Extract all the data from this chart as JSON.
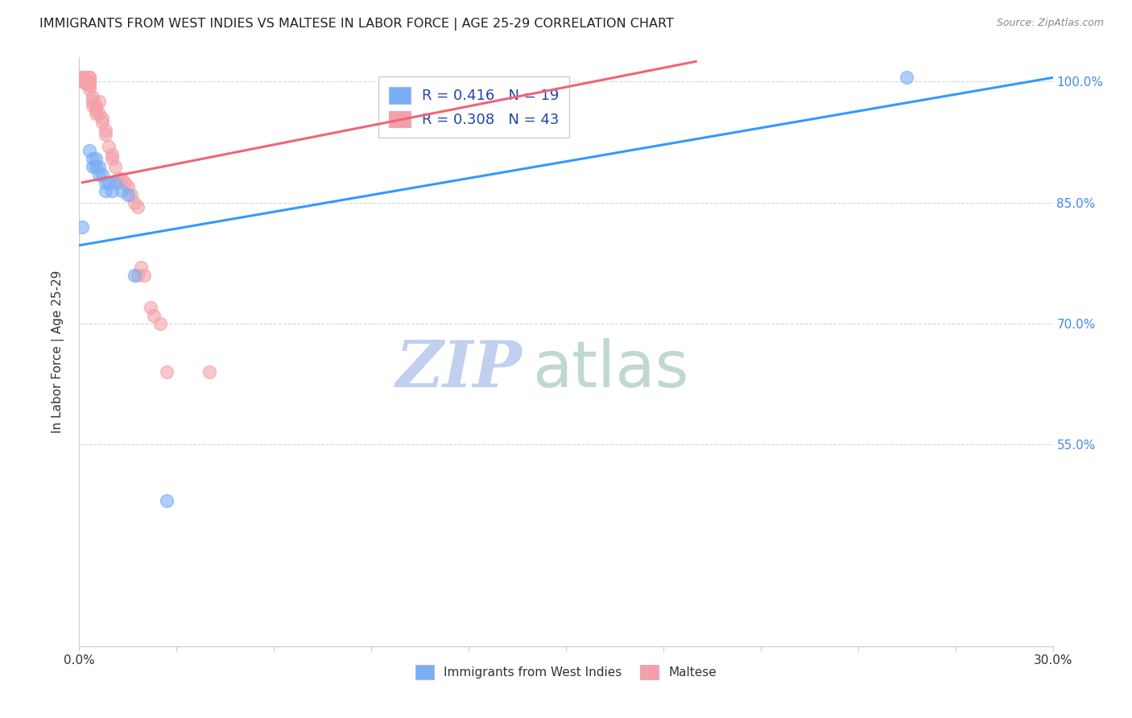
{
  "title": "IMMIGRANTS FROM WEST INDIES VS MALTESE IN LABOR FORCE | AGE 25-29 CORRELATION CHART",
  "source": "Source: ZipAtlas.com",
  "ylabel": "In Labor Force | Age 25-29",
  "xlim": [
    0.0,
    0.3
  ],
  "ylim": [
    0.3,
    1.03
  ],
  "ytick_values": [
    1.0,
    0.85,
    0.7,
    0.55
  ],
  "ytick_labels": [
    "100.0%",
    "85.0%",
    "70.0%",
    "55.0%"
  ],
  "blue_label": "Immigrants from West Indies",
  "pink_label": "Maltese",
  "blue_R": 0.416,
  "blue_N": 19,
  "pink_R": 0.308,
  "pink_N": 43,
  "blue_color": "#7aaef5",
  "pink_color": "#f5a0a8",
  "blue_scatter": [
    [
      0.001,
      0.82
    ],
    [
      0.003,
      0.915
    ],
    [
      0.004,
      0.905
    ],
    [
      0.004,
      0.895
    ],
    [
      0.005,
      0.905
    ],
    [
      0.005,
      0.895
    ],
    [
      0.006,
      0.895
    ],
    [
      0.006,
      0.885
    ],
    [
      0.007,
      0.885
    ],
    [
      0.008,
      0.875
    ],
    [
      0.008,
      0.865
    ],
    [
      0.009,
      0.875
    ],
    [
      0.01,
      0.865
    ],
    [
      0.011,
      0.875
    ],
    [
      0.013,
      0.865
    ],
    [
      0.015,
      0.86
    ],
    [
      0.017,
      0.76
    ],
    [
      0.027,
      0.48
    ],
    [
      0.255,
      1.005
    ]
  ],
  "pink_scatter": [
    [
      0.001,
      1.005
    ],
    [
      0.001,
      1.005
    ],
    [
      0.001,
      1.0
    ],
    [
      0.002,
      1.005
    ],
    [
      0.002,
      1.0
    ],
    [
      0.002,
      0.998
    ],
    [
      0.003,
      1.005
    ],
    [
      0.003,
      1.005
    ],
    [
      0.003,
      1.0
    ],
    [
      0.003,
      0.998
    ],
    [
      0.003,
      0.995
    ],
    [
      0.003,
      0.99
    ],
    [
      0.004,
      0.98
    ],
    [
      0.004,
      0.975
    ],
    [
      0.004,
      0.97
    ],
    [
      0.005,
      0.97
    ],
    [
      0.005,
      0.965
    ],
    [
      0.005,
      0.96
    ],
    [
      0.006,
      0.975
    ],
    [
      0.006,
      0.96
    ],
    [
      0.007,
      0.955
    ],
    [
      0.007,
      0.95
    ],
    [
      0.008,
      0.94
    ],
    [
      0.008,
      0.935
    ],
    [
      0.009,
      0.92
    ],
    [
      0.01,
      0.91
    ],
    [
      0.01,
      0.905
    ],
    [
      0.011,
      0.895
    ],
    [
      0.012,
      0.88
    ],
    [
      0.013,
      0.88
    ],
    [
      0.014,
      0.875
    ],
    [
      0.015,
      0.87
    ],
    [
      0.016,
      0.86
    ],
    [
      0.017,
      0.85
    ],
    [
      0.018,
      0.845
    ],
    [
      0.018,
      0.76
    ],
    [
      0.019,
      0.77
    ],
    [
      0.02,
      0.76
    ],
    [
      0.022,
      0.72
    ],
    [
      0.023,
      0.71
    ],
    [
      0.025,
      0.7
    ],
    [
      0.027,
      0.64
    ],
    [
      0.04,
      0.64
    ]
  ],
  "blue_line": [
    0.0,
    0.797,
    0.3,
    1.005
  ],
  "pink_line": [
    0.001,
    0.875,
    0.19,
    1.025
  ],
  "background_color": "#ffffff",
  "grid_color": "#cccccc",
  "title_color": "#222222",
  "axis_label_color": "#333333",
  "right_axis_color": "#4488ee",
  "watermark_zip": "ZIP",
  "watermark_atlas": "atlas",
  "watermark_color_zip": "#c0d0ee",
  "watermark_color_atlas": "#c0d8d0",
  "watermark_fontsize": 58
}
